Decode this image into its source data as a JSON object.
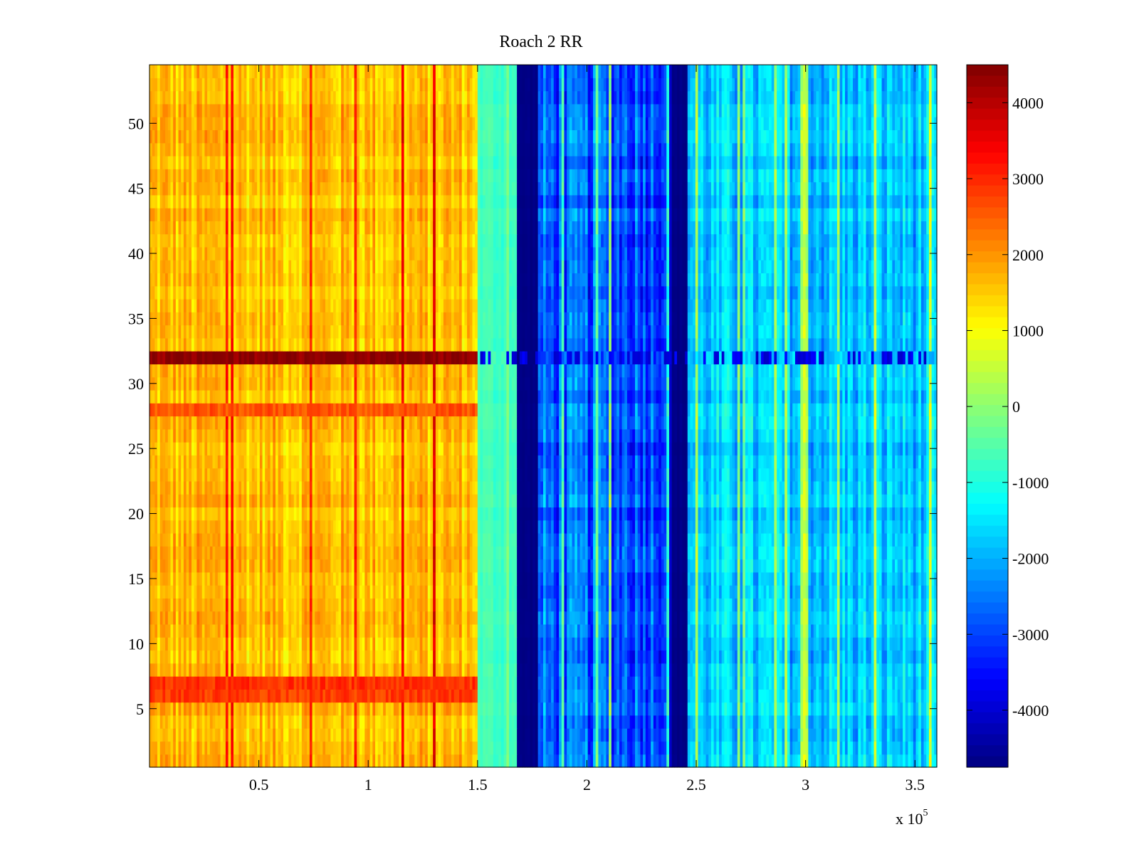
{
  "chart_data": {
    "type": "heatmap",
    "title": "Roach 2 RR",
    "xlabel": "",
    "ylabel": "",
    "x_multiplier_label": "x 10",
    "x_multiplier_exponent": "5",
    "xlim": [
      0,
      3.6
    ],
    "ylim": [
      0.5,
      54.5
    ],
    "x_ticks": [
      {
        "value": 0.5,
        "label": "0.5"
      },
      {
        "value": 1,
        "label": "1"
      },
      {
        "value": 1.5,
        "label": "1.5"
      },
      {
        "value": 2,
        "label": "2"
      },
      {
        "value": 2.5,
        "label": "2.5"
      },
      {
        "value": 3,
        "label": "3"
      },
      {
        "value": 3.5,
        "label": "3.5"
      }
    ],
    "y_ticks": [
      {
        "value": 5,
        "label": "5"
      },
      {
        "value": 10,
        "label": "10"
      },
      {
        "value": 15,
        "label": "15"
      },
      {
        "value": 20,
        "label": "20"
      },
      {
        "value": 25,
        "label": "25"
      },
      {
        "value": 30,
        "label": "30"
      },
      {
        "value": 35,
        "label": "35"
      },
      {
        "value": 40,
        "label": "40"
      },
      {
        "value": 45,
        "label": "45"
      },
      {
        "value": 50,
        "label": "50"
      }
    ],
    "colorbar": {
      "colormap": "jet",
      "clim": [
        -4750,
        4500
      ],
      "ticks": [
        {
          "value": 4000,
          "label": "4000"
        },
        {
          "value": 3000,
          "label": "3000"
        },
        {
          "value": 2000,
          "label": "2000"
        },
        {
          "value": 1000,
          "label": "1000"
        },
        {
          "value": 0,
          "label": "0"
        },
        {
          "value": -1000,
          "label": "-1000"
        },
        {
          "value": -2000,
          "label": "-2000"
        },
        {
          "value": -3000,
          "label": "-3000"
        },
        {
          "value": -4000,
          "label": "-4000"
        }
      ]
    },
    "rows": 54,
    "regions": [
      {
        "x_start": 0.0,
        "x_end": 1.5,
        "base_value": 1600,
        "variation": 700
      },
      {
        "x_start": 1.5,
        "x_end": 1.68,
        "base_value": -700,
        "variation": 300
      },
      {
        "x_start": 1.68,
        "x_end": 1.78,
        "base_value": -4700,
        "variation": 100
      },
      {
        "x_start": 1.78,
        "x_end": 2.38,
        "base_value": -2800,
        "variation": 1100
      },
      {
        "x_start": 2.38,
        "x_end": 2.46,
        "base_value": -4700,
        "variation": 100
      },
      {
        "x_start": 2.46,
        "x_end": 3.6,
        "base_value": -1800,
        "variation": 900
      }
    ],
    "row_features": [
      {
        "row": 32,
        "x_start": 0.0,
        "x_end": 1.5,
        "value": 4400
      },
      {
        "row": 32,
        "x_start": 1.5,
        "x_end": 3.6,
        "value": -3800
      },
      {
        "row": 28,
        "x_start": 0.0,
        "x_end": 1.5,
        "value": 2600
      },
      {
        "row": 7,
        "x_start": 0.0,
        "x_end": 1.5,
        "value": 2900
      },
      {
        "row": 6,
        "x_start": 0.0,
        "x_end": 1.5,
        "value": 2800
      }
    ]
  }
}
